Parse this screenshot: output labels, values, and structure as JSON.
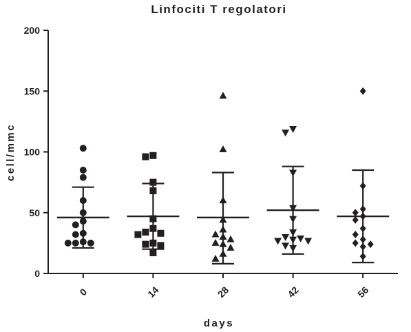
{
  "chart_data": {
    "type": "scatter",
    "title": "Linfociti T regolatori",
    "xlabel": "days",
    "ylabel": "cell/mmc",
    "categories": [
      "0",
      "14",
      "28",
      "42",
      "56"
    ],
    "ylim": [
      0,
      200
    ],
    "yticks": [
      0,
      50,
      100,
      150,
      200
    ],
    "grid": false,
    "legend": "none",
    "marker_color": "#231f20",
    "groups": [
      {
        "category": "0",
        "marker": "circle",
        "mean": 46,
        "sd_low": 21,
        "sd_high": 71,
        "values": [
          103,
          85,
          79,
          60,
          50,
          43,
          40,
          33,
          32,
          26,
          25,
          25,
          25
        ]
      },
      {
        "category": "14",
        "marker": "square",
        "mean": 47,
        "sd_low": 20,
        "sd_high": 74,
        "values": [
          97,
          96,
          75,
          68,
          45,
          37,
          34,
          33,
          32,
          25,
          24,
          23,
          17
        ]
      },
      {
        "category": "28",
        "marker": "triangle-up",
        "mean": 46,
        "sd_low": 8,
        "sd_high": 83,
        "values": [
          146,
          102,
          60,
          44,
          36,
          32,
          30,
          28,
          25,
          24,
          21,
          16,
          12
        ]
      },
      {
        "category": "42",
        "marker": "triangle-down",
        "mean": 52,
        "sd_low": 16,
        "sd_high": 88,
        "values": [
          119,
          116,
          83,
          54,
          45,
          34,
          30,
          29,
          28,
          27,
          27,
          23,
          21
        ]
      },
      {
        "category": "56",
        "marker": "diamond",
        "mean": 47,
        "sd_low": 9,
        "sd_high": 85,
        "values": [
          150,
          72,
          53,
          50,
          47,
          44,
          37,
          32,
          28,
          25,
          24,
          22,
          14
        ]
      }
    ]
  }
}
